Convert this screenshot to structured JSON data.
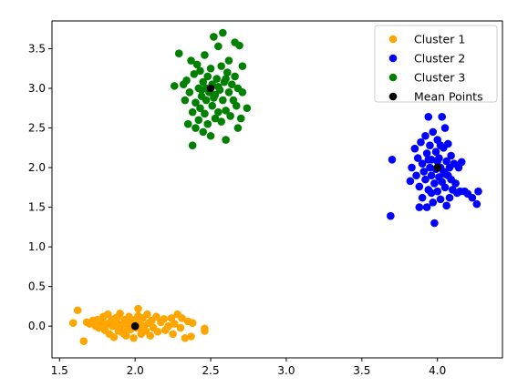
{
  "chart_data": {
    "type": "scatter",
    "title": "",
    "xlabel": "",
    "ylabel": "",
    "xlim": [
      1.45,
      4.43
    ],
    "ylim": [
      -0.4,
      3.85
    ],
    "xticks": [
      1.5,
      2.0,
      2.5,
      3.0,
      3.5,
      4.0
    ],
    "xtick_labels": [
      "1.5",
      "2.0",
      "2.5",
      "3.0",
      "3.5",
      "4.0"
    ],
    "yticks": [
      0.0,
      0.5,
      1.0,
      1.5,
      2.0,
      2.5,
      3.0,
      3.5
    ],
    "ytick_labels": [
      "0.0",
      "0.5",
      "1.0",
      "1.5",
      "2.0",
      "2.5",
      "3.0",
      "3.5"
    ],
    "grid": false,
    "legend_position": "top-right",
    "series": [
      {
        "name": "Cluster 1",
        "color": "#ffa500",
        "points": [
          [
            1.59,
            0.04
          ],
          [
            1.62,
            0.2
          ],
          [
            1.66,
            -0.19
          ],
          [
            1.68,
            0.05
          ],
          [
            1.7,
            0.03
          ],
          [
            1.72,
            0.07
          ],
          [
            1.74,
            0.0
          ],
          [
            1.75,
            0.08
          ],
          [
            1.76,
            -0.02
          ],
          [
            1.78,
            0.05
          ],
          [
            1.79,
            0.12
          ],
          [
            1.8,
            -0.05
          ],
          [
            1.81,
            0.03
          ],
          [
            1.82,
            0.15
          ],
          [
            1.83,
            -0.1
          ],
          [
            1.84,
            0.06
          ],
          [
            1.85,
            0.0
          ],
          [
            1.86,
            -0.14
          ],
          [
            1.87,
            0.1
          ],
          [
            1.88,
            0.04
          ],
          [
            1.89,
            -0.06
          ],
          [
            1.9,
            0.16
          ],
          [
            1.91,
            0.01
          ],
          [
            1.92,
            -0.09
          ],
          [
            1.93,
            0.08
          ],
          [
            1.94,
            -0.12
          ],
          [
            1.95,
            0.03
          ],
          [
            1.96,
            0.12
          ],
          [
            1.97,
            -0.04
          ],
          [
            1.98,
            0.06
          ],
          [
            1.99,
            -0.15
          ],
          [
            2.0,
            0.08
          ],
          [
            2.01,
            -0.02
          ],
          [
            2.02,
            0.22
          ],
          [
            2.03,
            0.02
          ],
          [
            2.04,
            -0.1
          ],
          [
            2.05,
            0.1
          ],
          [
            2.06,
            0.0
          ],
          [
            2.07,
            -0.06
          ],
          [
            2.08,
            0.15
          ],
          [
            2.09,
            0.04
          ],
          [
            2.1,
            -0.12
          ],
          [
            2.11,
            0.07
          ],
          [
            2.12,
            -0.02
          ],
          [
            2.14,
            0.12
          ],
          [
            2.15,
            -0.07
          ],
          [
            2.17,
            0.05
          ],
          [
            2.19,
            0.09
          ],
          [
            2.2,
            -0.05
          ],
          [
            2.22,
            0.0
          ],
          [
            2.24,
            0.1
          ],
          [
            2.25,
            -0.1
          ],
          [
            2.26,
            0.03
          ],
          [
            2.28,
            0.15
          ],
          [
            2.3,
            -0.02
          ],
          [
            2.31,
            0.1
          ],
          [
            2.33,
            -0.15
          ],
          [
            2.35,
            0.06
          ],
          [
            2.37,
            -0.13
          ],
          [
            2.38,
            0.04
          ],
          [
            2.46,
            -0.03
          ],
          [
            2.46,
            -0.06
          ],
          [
            1.8,
            0.0
          ],
          [
            1.85,
            0.08
          ],
          [
            1.9,
            -0.02
          ],
          [
            1.95,
            -0.05
          ],
          [
            2.0,
            0.03
          ],
          [
            2.05,
            -0.04
          ],
          [
            1.88,
            0.11
          ],
          [
            2.02,
            0.13
          ]
        ]
      },
      {
        "name": "Cluster 2",
        "color": "#0000ff",
        "points": [
          [
            3.69,
            1.39
          ],
          [
            3.7,
            2.1
          ],
          [
            3.82,
            1.83
          ],
          [
            3.83,
            2.0
          ],
          [
            3.85,
            2.24
          ],
          [
            3.86,
            1.9
          ],
          [
            3.87,
            2.12
          ],
          [
            3.88,
            1.5
          ],
          [
            3.88,
            1.76
          ],
          [
            3.89,
            2.32
          ],
          [
            3.9,
            1.62
          ],
          [
            3.9,
            2.05
          ],
          [
            3.91,
            1.95
          ],
          [
            3.92,
            2.4
          ],
          [
            3.92,
            1.85
          ],
          [
            3.93,
            2.18
          ],
          [
            3.93,
            1.5
          ],
          [
            3.94,
            2.64
          ],
          [
            3.94,
            1.72
          ],
          [
            3.95,
            2.0
          ],
          [
            3.95,
            2.28
          ],
          [
            3.96,
            1.9
          ],
          [
            3.96,
            2.1
          ],
          [
            3.97,
            1.56
          ],
          [
            3.97,
            2.45
          ],
          [
            3.98,
            1.8
          ],
          [
            3.98,
            1.3
          ],
          [
            3.99,
            2.2
          ],
          [
            3.99,
            1.98
          ],
          [
            4.0,
            1.7
          ],
          [
            4.0,
            2.35
          ],
          [
            4.01,
            1.88
          ],
          [
            4.01,
            2.12
          ],
          [
            4.02,
            2.0
          ],
          [
            4.02,
            1.6
          ],
          [
            4.03,
            2.64
          ],
          [
            4.03,
            1.82
          ],
          [
            4.04,
            2.25
          ],
          [
            4.04,
            1.95
          ],
          [
            4.05,
            2.5
          ],
          [
            4.05,
            1.75
          ],
          [
            4.06,
            2.08
          ],
          [
            4.06,
            1.52
          ],
          [
            4.07,
            1.9
          ],
          [
            4.07,
            2.3
          ],
          [
            4.08,
            2.0
          ],
          [
            4.08,
            1.62
          ],
          [
            4.09,
            1.85
          ],
          [
            4.09,
            2.15
          ],
          [
            4.1,
            1.72
          ],
          [
            4.11,
            2.05
          ],
          [
            4.12,
            1.8
          ],
          [
            4.13,
            1.68
          ],
          [
            4.14,
            2.0
          ],
          [
            4.15,
            1.7
          ],
          [
            4.16,
            2.07
          ],
          [
            4.18,
            1.7
          ],
          [
            4.2,
            1.67
          ],
          [
            4.23,
            1.62
          ],
          [
            4.26,
            1.54
          ],
          [
            4.27,
            1.7
          ],
          [
            3.96,
            1.68
          ],
          [
            4.0,
            2.08
          ],
          [
            3.94,
            2.1
          ],
          [
            4.05,
            1.92
          ],
          [
            4.02,
            2.28
          ]
        ]
      },
      {
        "name": "Cluster 3",
        "color": "#008000",
        "points": [
          [
            2.26,
            3.03
          ],
          [
            2.29,
            3.44
          ],
          [
            2.32,
            3.05
          ],
          [
            2.33,
            2.85
          ],
          [
            2.34,
            3.1
          ],
          [
            2.35,
            2.55
          ],
          [
            2.36,
            2.95
          ],
          [
            2.37,
            3.35
          ],
          [
            2.38,
            2.28
          ],
          [
            2.38,
            2.7
          ],
          [
            2.39,
            3.18
          ],
          [
            2.4,
            2.5
          ],
          [
            2.4,
            2.82
          ],
          [
            2.41,
            3.3
          ],
          [
            2.42,
            2.6
          ],
          [
            2.42,
            3.0
          ],
          [
            2.43,
            2.75
          ],
          [
            2.43,
            3.22
          ],
          [
            2.44,
            2.9
          ],
          [
            2.45,
            2.45
          ],
          [
            2.45,
            3.08
          ],
          [
            2.46,
            2.68
          ],
          [
            2.46,
            3.42
          ],
          [
            2.47,
            2.85
          ],
          [
            2.48,
            3.15
          ],
          [
            2.48,
            2.55
          ],
          [
            2.49,
            2.95
          ],
          [
            2.5,
            3.25
          ],
          [
            2.5,
            2.4
          ],
          [
            2.51,
            2.78
          ],
          [
            2.51,
            3.05
          ],
          [
            2.52,
            3.65
          ],
          [
            2.53,
            2.62
          ],
          [
            2.53,
            2.92
          ],
          [
            2.54,
            3.12
          ],
          [
            2.55,
            2.7
          ],
          [
            2.55,
            3.53
          ],
          [
            2.56,
            2.98
          ],
          [
            2.57,
            3.28
          ],
          [
            2.57,
            2.58
          ],
          [
            2.58,
            3.7
          ],
          [
            2.58,
            2.85
          ],
          [
            2.59,
            3.08
          ],
          [
            2.6,
            2.35
          ],
          [
            2.6,
            2.72
          ],
          [
            2.61,
            3.2
          ],
          [
            2.62,
            2.95
          ],
          [
            2.62,
            3.35
          ],
          [
            2.63,
            2.65
          ],
          [
            2.64,
            3.05
          ],
          [
            2.65,
            2.85
          ],
          [
            2.66,
            3.58
          ],
          [
            2.66,
            3.15
          ],
          [
            2.67,
            2.78
          ],
          [
            2.68,
            2.5
          ],
          [
            2.68,
            3.0
          ],
          [
            2.69,
            3.54
          ],
          [
            2.7,
            2.62
          ],
          [
            2.71,
            3.28
          ],
          [
            2.71,
            2.95
          ],
          [
            2.74,
            2.75
          ],
          [
            2.44,
            2.98
          ],
          [
            2.55,
            3.02
          ],
          [
            2.47,
            3.0
          ],
          [
            2.6,
            3.12
          ],
          [
            2.52,
            2.88
          ]
        ]
      },
      {
        "name": "Mean Points",
        "color": "#000000",
        "points": [
          [
            2.0,
            0.0
          ],
          [
            4.0,
            2.0
          ],
          [
            2.5,
            3.0
          ]
        ]
      }
    ]
  }
}
